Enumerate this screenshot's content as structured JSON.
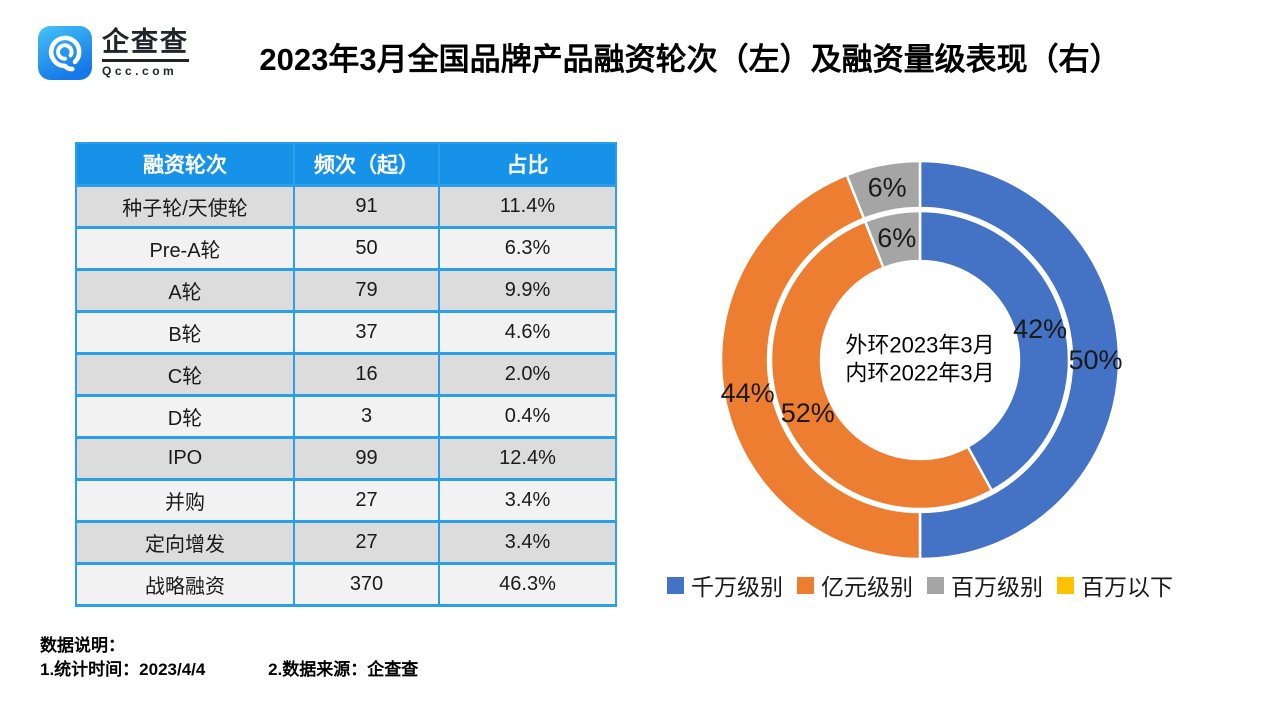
{
  "logo": {
    "name": "企查查",
    "domain": "Qcc.com"
  },
  "title": "2023年3月全国品牌产品融资轮次（左）及融资量级表现（右）",
  "table": {
    "columns": [
      "融资轮次",
      "频次（起）",
      "占比"
    ],
    "rows": [
      [
        "种子轮/天使轮",
        "91",
        "11.4%"
      ],
      [
        "Pre-A轮",
        "50",
        "6.3%"
      ],
      [
        "A轮",
        "79",
        "9.9%"
      ],
      [
        "B轮",
        "37",
        "4.6%"
      ],
      [
        "C轮",
        "16",
        "2.0%"
      ],
      [
        "D轮",
        "3",
        "0.4%"
      ],
      [
        "IPO",
        "99",
        "12.4%"
      ],
      [
        "并购",
        "27",
        "3.4%"
      ],
      [
        "定向增发",
        "27",
        "3.4%"
      ],
      [
        "战略融资",
        "370",
        "46.3%"
      ]
    ]
  },
  "chart_data": {
    "type": "donut",
    "subtype": "double-ring",
    "categories": [
      "千万级别",
      "亿元级别",
      "百万级别",
      "百万以下"
    ],
    "palette": [
      "#4472C4",
      "#ED7D31",
      "#A5A5A5",
      "#FFC000"
    ],
    "series": [
      {
        "name": "外环2023年3月",
        "ring": "outer",
        "values": [
          50,
          44,
          6,
          0
        ],
        "labels": [
          "50%",
          "44%",
          "6%",
          ""
        ]
      },
      {
        "name": "内环2022年3月",
        "ring": "inner",
        "values": [
          42,
          52,
          6,
          0
        ],
        "labels": [
          "42%",
          "52%",
          "6%",
          ""
        ]
      }
    ],
    "center_lines": [
      "外环2023年3月",
      "内环2022年3月"
    ],
    "legend_position": "bottom",
    "unit": "percent",
    "start_angle_deg": 0,
    "direction": "clockwise"
  },
  "footer": {
    "note_title": "数据说明：",
    "note1": "1.统计时间：2023/4/4",
    "note2": "2.数据来源：企查查"
  },
  "colors": {
    "table_header_blue": "#1792E9",
    "table_border_blue": "#2B9FE8",
    "row_dark": "#DCDCDC",
    "row_light": "#F2F2F2",
    "logo_gradient_top": "#45C2F5",
    "logo_gradient_bottom": "#1578E8"
  }
}
